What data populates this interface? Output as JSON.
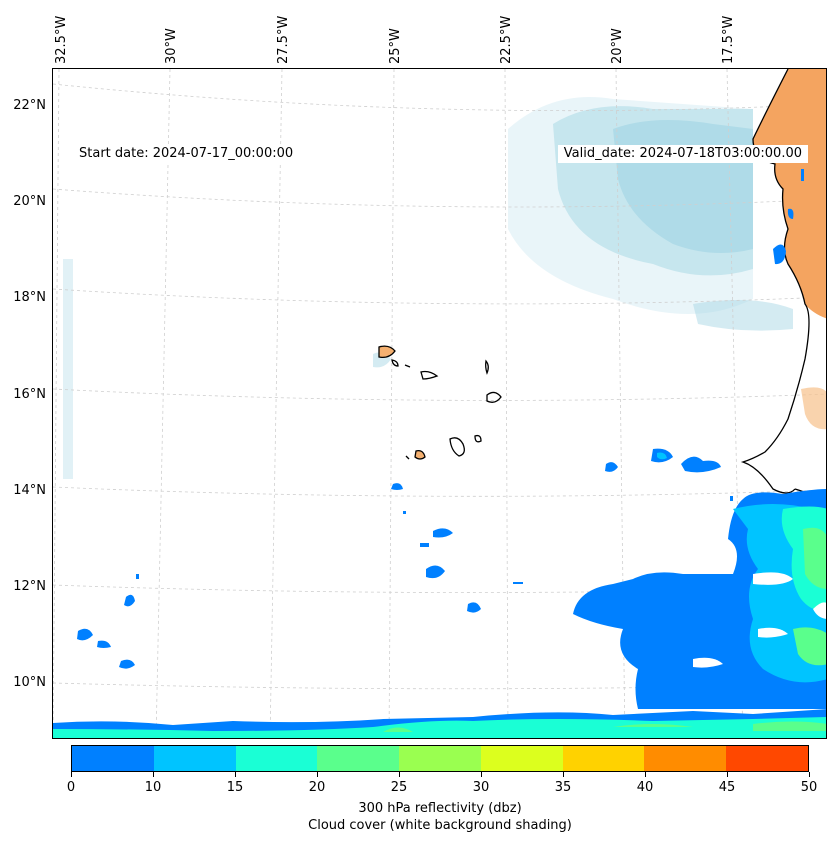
{
  "map": {
    "start_label": "Start date: 2024-07-17_00:00:00",
    "valid_label": "Valid_date: 2024-07-18T03:00:00.00",
    "lon_labels": [
      "32.5°W",
      "30°W",
      "27.5°W",
      "25°W",
      "22.5°W",
      "20°W",
      "17.5°W"
    ],
    "lat_labels": [
      "22°N",
      "20°N",
      "18°N",
      "16°N",
      "14°N",
      "12°N",
      "10°N"
    ],
    "colors": {
      "cloud": "#a9d8e6",
      "land": "#f4a460",
      "coast": "#000000",
      "grid": "#c8c8c8"
    }
  },
  "colorbar": {
    "ticks": [
      "0",
      "10",
      "15",
      "20",
      "25",
      "30",
      "35",
      "40",
      "45",
      "50"
    ],
    "colors": [
      "#0080ff",
      "#00c4ff",
      "#1affd5",
      "#5aff8c",
      "#9aff50",
      "#dcff1e",
      "#ffd200",
      "#ff8c00",
      "#ff4800"
    ],
    "label_line1": "300 hPa reflectivity (dbz)",
    "label_line2": "Cloud cover (white background shading)"
  }
}
